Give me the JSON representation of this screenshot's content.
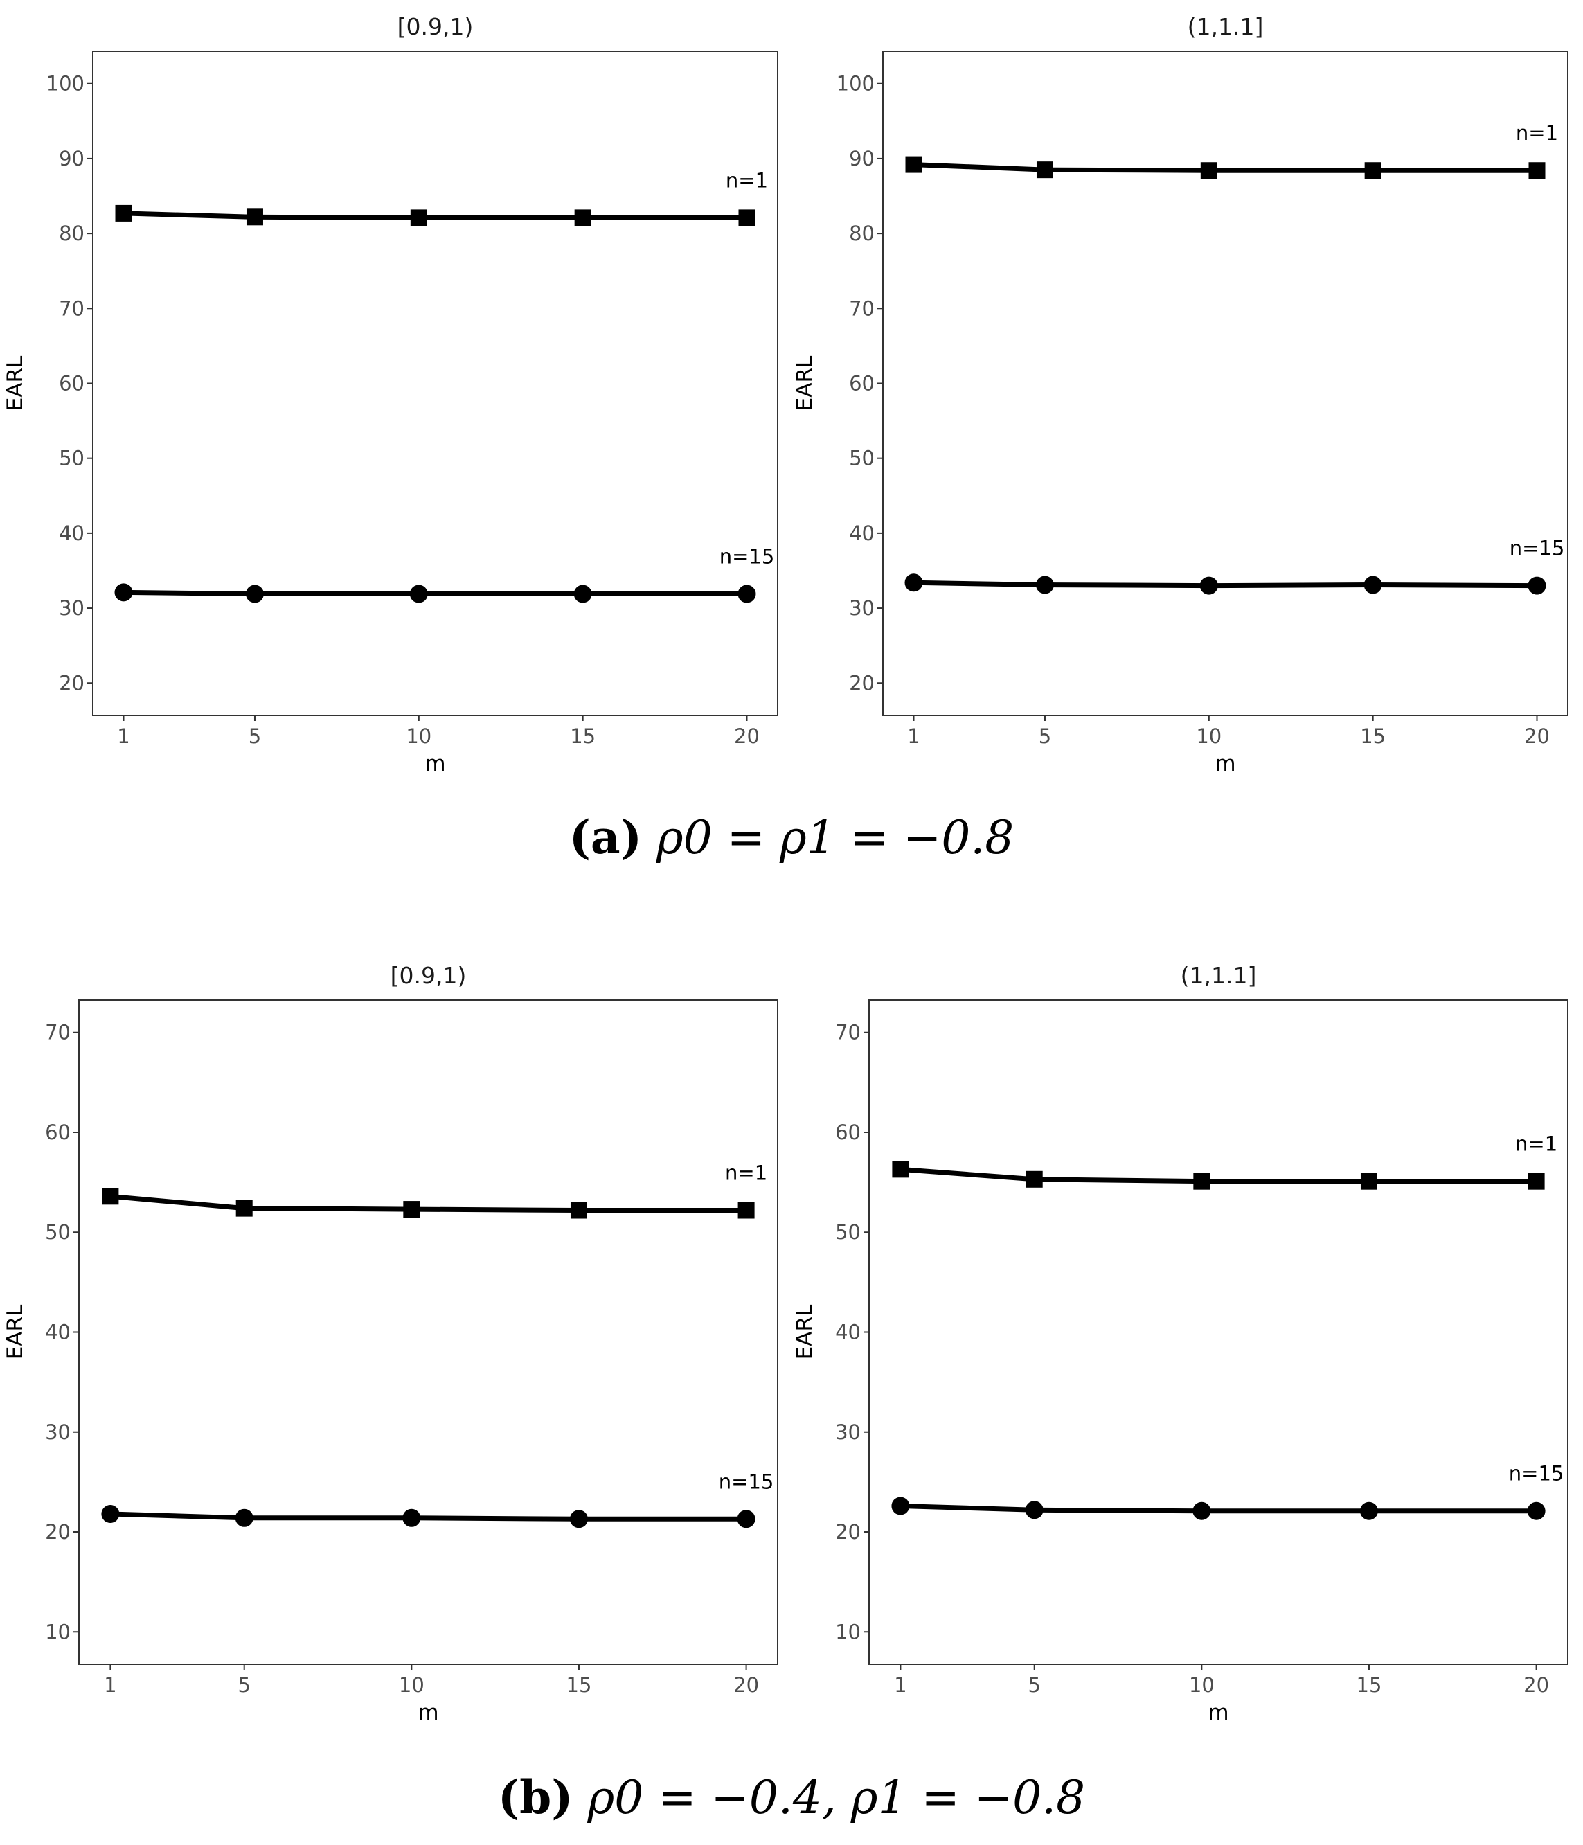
{
  "figure": {
    "captions": [
      {
        "tag": "(a)",
        "text": "ρ0 = ρ1 = −0.8",
        "tex": "\\rho_0 = \\rho_1 = -0.8"
      },
      {
        "tag": "(b)",
        "text": "ρ0 = −0.4, ρ1 = −0.8",
        "tex": "\\rho_0 = -0.4, \\rho_1 = -0.8"
      }
    ]
  },
  "chart_data": [
    {
      "type": "line",
      "panel": "a-left",
      "title": "[0.9,1)",
      "xlabel": "m",
      "ylabel": "EARL",
      "x": [
        1,
        5,
        10,
        15,
        20
      ],
      "ylim": [
        20,
        100
      ],
      "yticks": [
        20,
        30,
        40,
        50,
        60,
        70,
        80,
        90,
        100
      ],
      "series": [
        {
          "name": "n=1",
          "marker": "square",
          "values": [
            82.7,
            82.2,
            82.1,
            82.1,
            82.1
          ]
        },
        {
          "name": "n=15",
          "marker": "circle",
          "values": [
            32.1,
            31.9,
            31.9,
            31.9,
            31.9
          ]
        }
      ]
    },
    {
      "type": "line",
      "panel": "a-right",
      "title": "(1,1.1]",
      "xlabel": "m",
      "ylabel": "EARL",
      "x": [
        1,
        5,
        10,
        15,
        20
      ],
      "ylim": [
        20,
        100
      ],
      "yticks": [
        20,
        30,
        40,
        50,
        60,
        70,
        80,
        90,
        100
      ],
      "series": [
        {
          "name": "n=1",
          "marker": "square",
          "values": [
            89.2,
            88.5,
            88.4,
            88.4,
            88.4
          ]
        },
        {
          "name": "n=15",
          "marker": "circle",
          "values": [
            33.4,
            33.1,
            33.0,
            33.1,
            33.0
          ]
        }
      ]
    },
    {
      "type": "line",
      "panel": "b-left",
      "title": "[0.9,1)",
      "xlabel": "m",
      "ylabel": "EARL",
      "x": [
        1,
        5,
        10,
        15,
        20
      ],
      "ylim": [
        10,
        70
      ],
      "yticks": [
        10,
        20,
        30,
        40,
        50,
        60,
        70
      ],
      "series": [
        {
          "name": "n=1",
          "marker": "square",
          "values": [
            53.6,
            52.4,
            52.3,
            52.2,
            52.2
          ]
        },
        {
          "name": "n=15",
          "marker": "circle",
          "values": [
            21.8,
            21.4,
            21.4,
            21.3,
            21.3
          ]
        }
      ]
    },
    {
      "type": "line",
      "panel": "b-right",
      "title": "(1,1.1]",
      "xlabel": "m",
      "ylabel": "EARL",
      "x": [
        1,
        5,
        10,
        15,
        20
      ],
      "ylim": [
        10,
        70
      ],
      "yticks": [
        10,
        20,
        30,
        40,
        50,
        60,
        70
      ],
      "series": [
        {
          "name": "n=1",
          "marker": "square",
          "values": [
            56.3,
            55.3,
            55.1,
            55.1,
            55.1
          ]
        },
        {
          "name": "n=15",
          "marker": "circle",
          "values": [
            22.6,
            22.2,
            22.1,
            22.1,
            22.1
          ]
        }
      ]
    }
  ]
}
